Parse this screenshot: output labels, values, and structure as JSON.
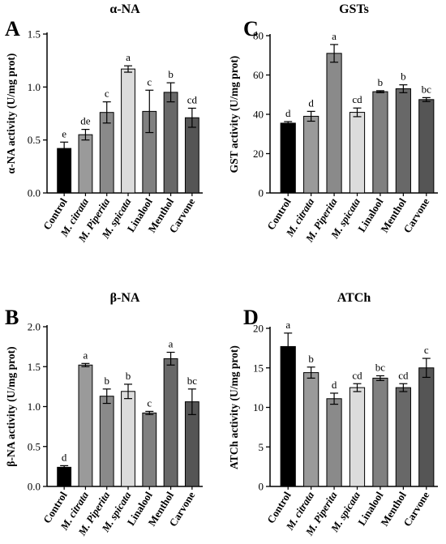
{
  "chart_data": [
    {
      "type": "bar",
      "panel": "A",
      "title": "α-NA",
      "ylabel": "α-NA activity (U/mg prot)",
      "ylim": [
        0,
        1.5
      ],
      "yticks": [
        "0.0",
        "0.5",
        "1.0",
        "1.5"
      ],
      "categories": [
        "Control",
        "M. citrata",
        "M. Piperita",
        "M. spicata",
        "Linalool",
        "Menthol",
        "Carvone"
      ],
      "italic_prefix": [
        false,
        true,
        true,
        true,
        false,
        false,
        false
      ],
      "values": [
        0.42,
        0.55,
        0.76,
        1.17,
        0.77,
        0.95,
        0.71
      ],
      "errors": [
        0.06,
        0.05,
        0.1,
        0.03,
        0.2,
        0.09,
        0.09
      ],
      "letters": [
        "e",
        "de",
        "c",
        "a",
        "c",
        "b",
        "cd"
      ],
      "colors": [
        "#000000",
        "#9a9a9a",
        "#8a8a8a",
        "#dcdcdc",
        "#808080",
        "#686868",
        "#555555"
      ]
    },
    {
      "type": "bar",
      "panel": "C",
      "title": "GSTs",
      "ylabel": "GST activity (U/mg prot)",
      "ylim": [
        0,
        80
      ],
      "yticks": [
        "0",
        "20",
        "40",
        "60",
        "80"
      ],
      "categories": [
        "Control",
        "M. citrata",
        "M. Piperita",
        "M. spicata",
        "Linalool",
        "Menthol",
        "Carvone"
      ],
      "italic_prefix": [
        false,
        true,
        true,
        true,
        false,
        false,
        false
      ],
      "values": [
        35.5,
        39,
        71,
        41,
        51.5,
        53,
        47.5
      ],
      "errors": [
        0.8,
        2.5,
        4.5,
        2.2,
        0.5,
        2,
        1
      ],
      "letters": [
        "d",
        "d",
        "a",
        "cd",
        "b",
        "b",
        "bc"
      ],
      "colors": [
        "#000000",
        "#9a9a9a",
        "#8a8a8a",
        "#dcdcdc",
        "#808080",
        "#686868",
        "#555555"
      ]
    },
    {
      "type": "bar",
      "panel": "B",
      "title": "β-NA",
      "ylabel": "β-NA activity (U/mg prot)",
      "ylim": [
        0,
        2.0
      ],
      "yticks": [
        "0.0",
        "0.5",
        "1.0",
        "1.5",
        "2.0"
      ],
      "categories": [
        "Control",
        "M. citrata",
        "M. Piperita",
        "M. spicata",
        "Linalool",
        "Menthol",
        "Carvone"
      ],
      "italic_prefix": [
        false,
        true,
        true,
        true,
        false,
        false,
        false
      ],
      "values": [
        0.24,
        1.52,
        1.13,
        1.19,
        0.92,
        1.6,
        1.06
      ],
      "errors": [
        0.02,
        0.02,
        0.09,
        0.09,
        0.02,
        0.08,
        0.16
      ],
      "letters": [
        "d",
        "a",
        "b",
        "b",
        "c",
        "a",
        "bc"
      ],
      "colors": [
        "#000000",
        "#9a9a9a",
        "#8a8a8a",
        "#dcdcdc",
        "#808080",
        "#686868",
        "#555555"
      ]
    },
    {
      "type": "bar",
      "panel": "D",
      "title": "ATCh",
      "ylabel": "ATCh activity (U/mg prot)",
      "ylim": [
        0,
        20
      ],
      "yticks": [
        "0",
        "5",
        "10",
        "15",
        "20"
      ],
      "categories": [
        "Control",
        "M. citrata",
        "M. Piperita",
        "M. spicata",
        "Linalool",
        "Menthol",
        "Carvone"
      ],
      "italic_prefix": [
        false,
        true,
        true,
        true,
        false,
        false,
        false
      ],
      "values": [
        17.7,
        14.4,
        11.1,
        12.5,
        13.7,
        12.5,
        15
      ],
      "errors": [
        1.7,
        0.7,
        0.7,
        0.5,
        0.3,
        0.5,
        1.2
      ],
      "letters": [
        "a",
        "b",
        "d",
        "cd",
        "bc",
        "cd",
        "c"
      ],
      "colors": [
        "#000000",
        "#9a9a9a",
        "#8a8a8a",
        "#dcdcdc",
        "#808080",
        "#686868",
        "#555555"
      ]
    }
  ]
}
